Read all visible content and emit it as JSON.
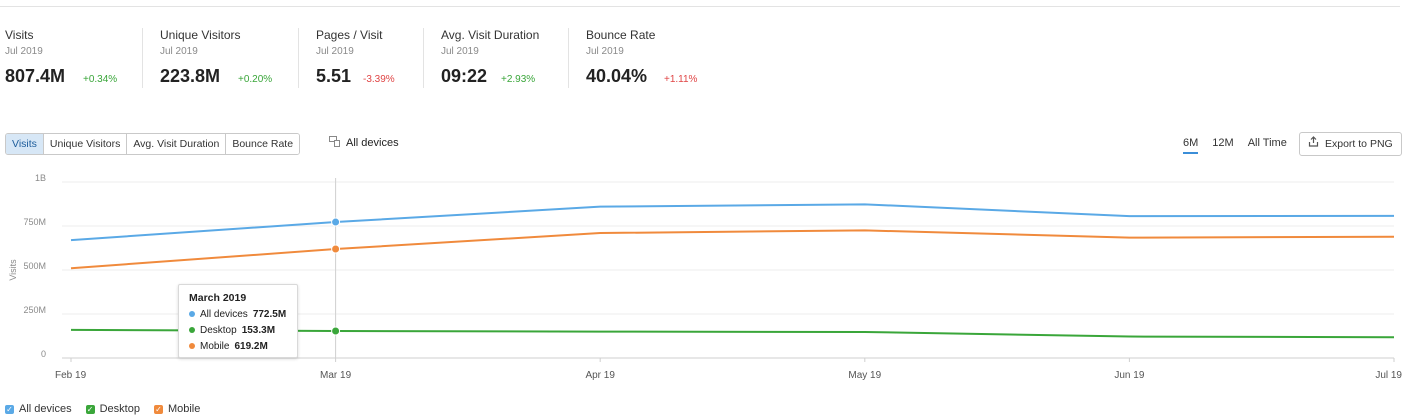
{
  "metrics": [
    {
      "label": "Visits",
      "period": "Jul 2019",
      "value": "807.4M",
      "delta": "+0.34%",
      "direction": "up"
    },
    {
      "label": "Unique Visitors",
      "period": "Jul 2019",
      "value": "223.8M",
      "delta": "+0.20%",
      "direction": "up"
    },
    {
      "label": "Pages / Visit",
      "period": "Jul 2019",
      "value": "5.51",
      "delta": "-3.39%",
      "direction": "down"
    },
    {
      "label": "Avg. Visit Duration",
      "period": "Jul 2019",
      "value": "09:22",
      "delta": "+2.93%",
      "direction": "up"
    },
    {
      "label": "Bounce Rate",
      "period": "Jul 2019",
      "value": "40.04%",
      "delta": "+1.11%",
      "direction": "down"
    }
  ],
  "toolbar": {
    "tabs": [
      "Visits",
      "Unique Visitors",
      "Avg. Visit Duration",
      "Bounce Rate"
    ],
    "active_tab": "Visits",
    "devices_label": "All devices",
    "ranges": [
      "6M",
      "12M",
      "All Time"
    ],
    "active_range": "6M",
    "export_label": "Export to PNG"
  },
  "colors": {
    "all_devices": "#5aa9e6",
    "desktop": "#3aa63a",
    "mobile": "#f08a3c",
    "accent": "#3b8ed8"
  },
  "chart_data": {
    "type": "line",
    "categories": [
      "Feb 19",
      "Mar 19",
      "Apr 19",
      "May 19",
      "Jun 19",
      "Jul 19"
    ],
    "ylabel": "Visits",
    "ylim": [
      0,
      1000000000
    ],
    "yticks": [
      0,
      250000000,
      500000000,
      750000000,
      1000000000
    ],
    "ytick_labels": [
      "0",
      "250M",
      "500M",
      "750M",
      "1B"
    ],
    "grid": true,
    "legend_placement": "bottom-left",
    "series": [
      {
        "name": "All devices",
        "color": "#5aa9e6",
        "values": [
          670000000,
          772500000,
          860000000,
          873000000,
          806000000,
          807400000
        ]
      },
      {
        "name": "Desktop",
        "color": "#3aa63a",
        "values": [
          160000000,
          153300000,
          150000000,
          148000000,
          122000000,
          118000000
        ]
      },
      {
        "name": "Mobile",
        "color": "#f08a3c",
        "values": [
          510000000,
          619200000,
          710000000,
          725000000,
          684000000,
          689000000
        ]
      }
    ],
    "highlight": {
      "index": 1,
      "title": "March 2019",
      "rows": [
        {
          "label": "All devices",
          "value": "772.5M"
        },
        {
          "label": "Desktop",
          "value": "153.3M"
        },
        {
          "label": "Mobile",
          "value": "619.2M"
        }
      ]
    }
  },
  "legend": [
    {
      "label": "All devices",
      "color": "#5aa9e6"
    },
    {
      "label": "Desktop",
      "color": "#3aa63a"
    },
    {
      "label": "Mobile",
      "color": "#f08a3c"
    }
  ]
}
